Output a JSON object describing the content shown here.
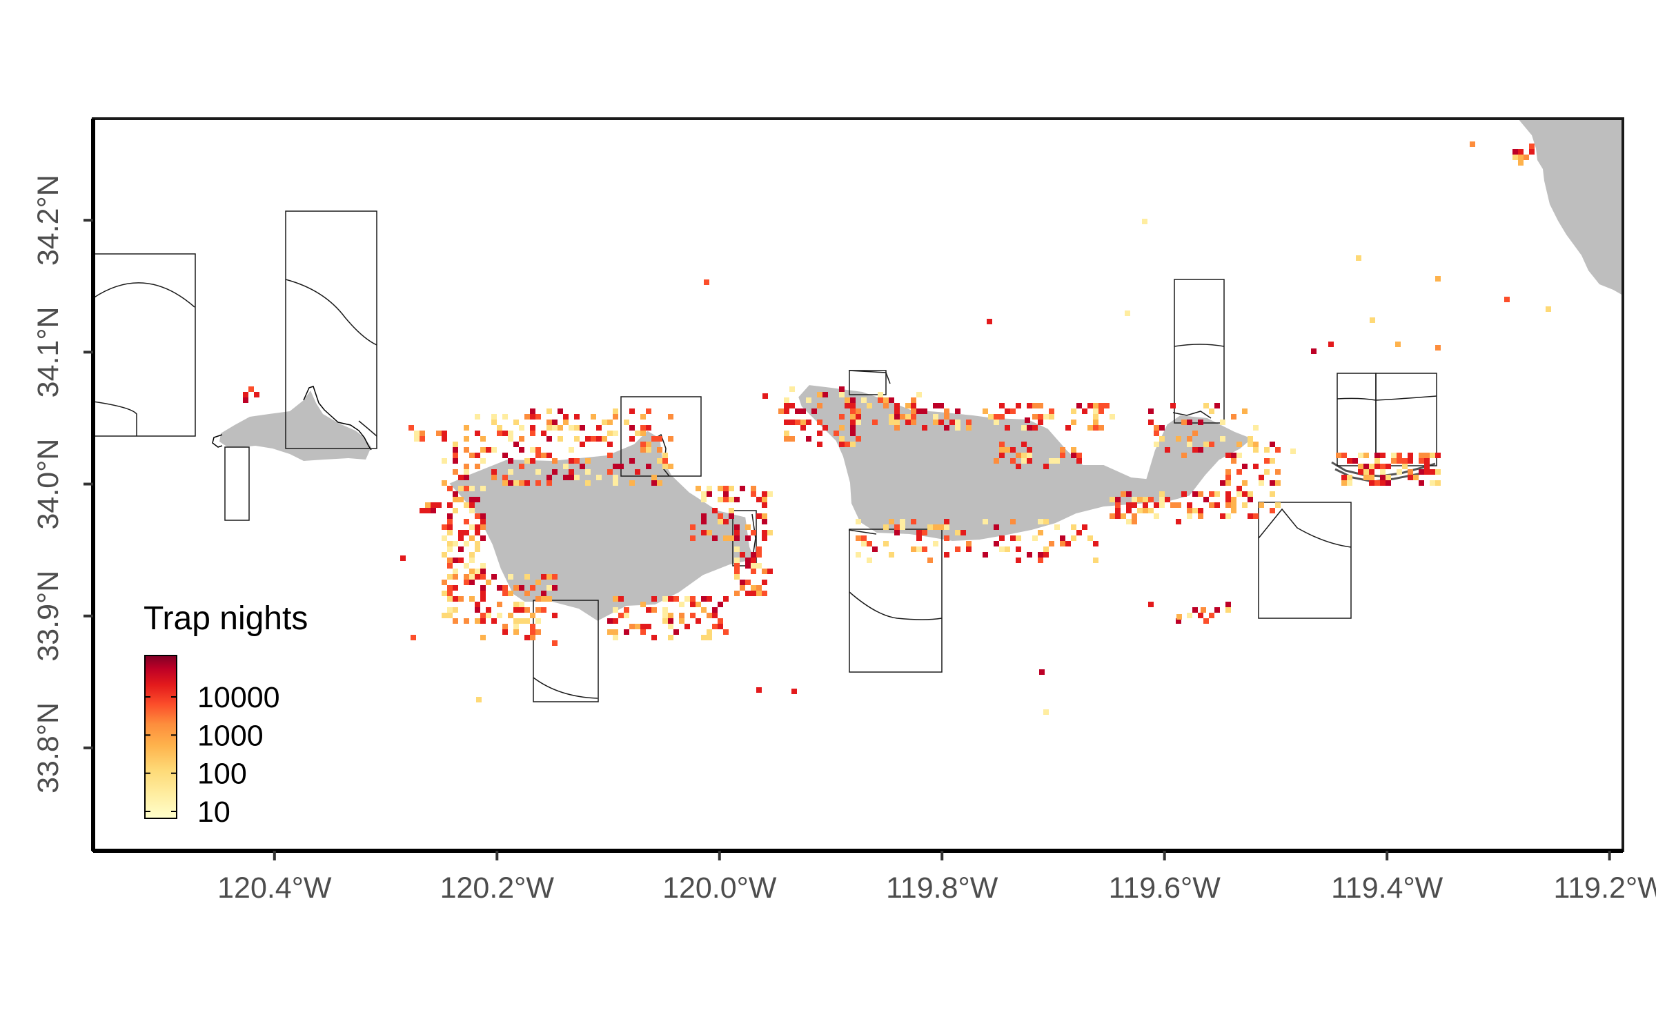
{
  "map": {
    "x_ticks": [
      "120.4°W",
      "120.2°W",
      "120.0°W",
      "119.8°W",
      "119.6°W",
      "119.4°W",
      "119.2°W"
    ],
    "y_ticks": [
      "33.8°N",
      "33.9°N",
      "34.0°N",
      "34.1°N",
      "34.2°N"
    ],
    "x_tick_values": [
      -120.4,
      -120.2,
      -120.0,
      -119.8,
      -119.6,
      -119.4,
      -119.2
    ],
    "y_tick_values": [
      33.8,
      33.9,
      34.0,
      34.1,
      34.2
    ],
    "lon_range": [
      -120.563,
      -119.188
    ],
    "lat_range": [
      33.722,
      34.277
    ],
    "land_color": "#bebebe",
    "island_outline_color": "#ffffff",
    "zone_outline_color": "#1a1a1a",
    "legend": {
      "title": "Trap nights",
      "labels": [
        "10000",
        "1000",
        "100",
        "10"
      ],
      "scale": "log10",
      "colors": [
        "#ffffcc",
        "#ffeda0",
        "#fed976",
        "#feb24c",
        "#fd8d3c",
        "#fc4e2a",
        "#e31a1c",
        "#bd0026",
        "#800026"
      ]
    }
  }
}
